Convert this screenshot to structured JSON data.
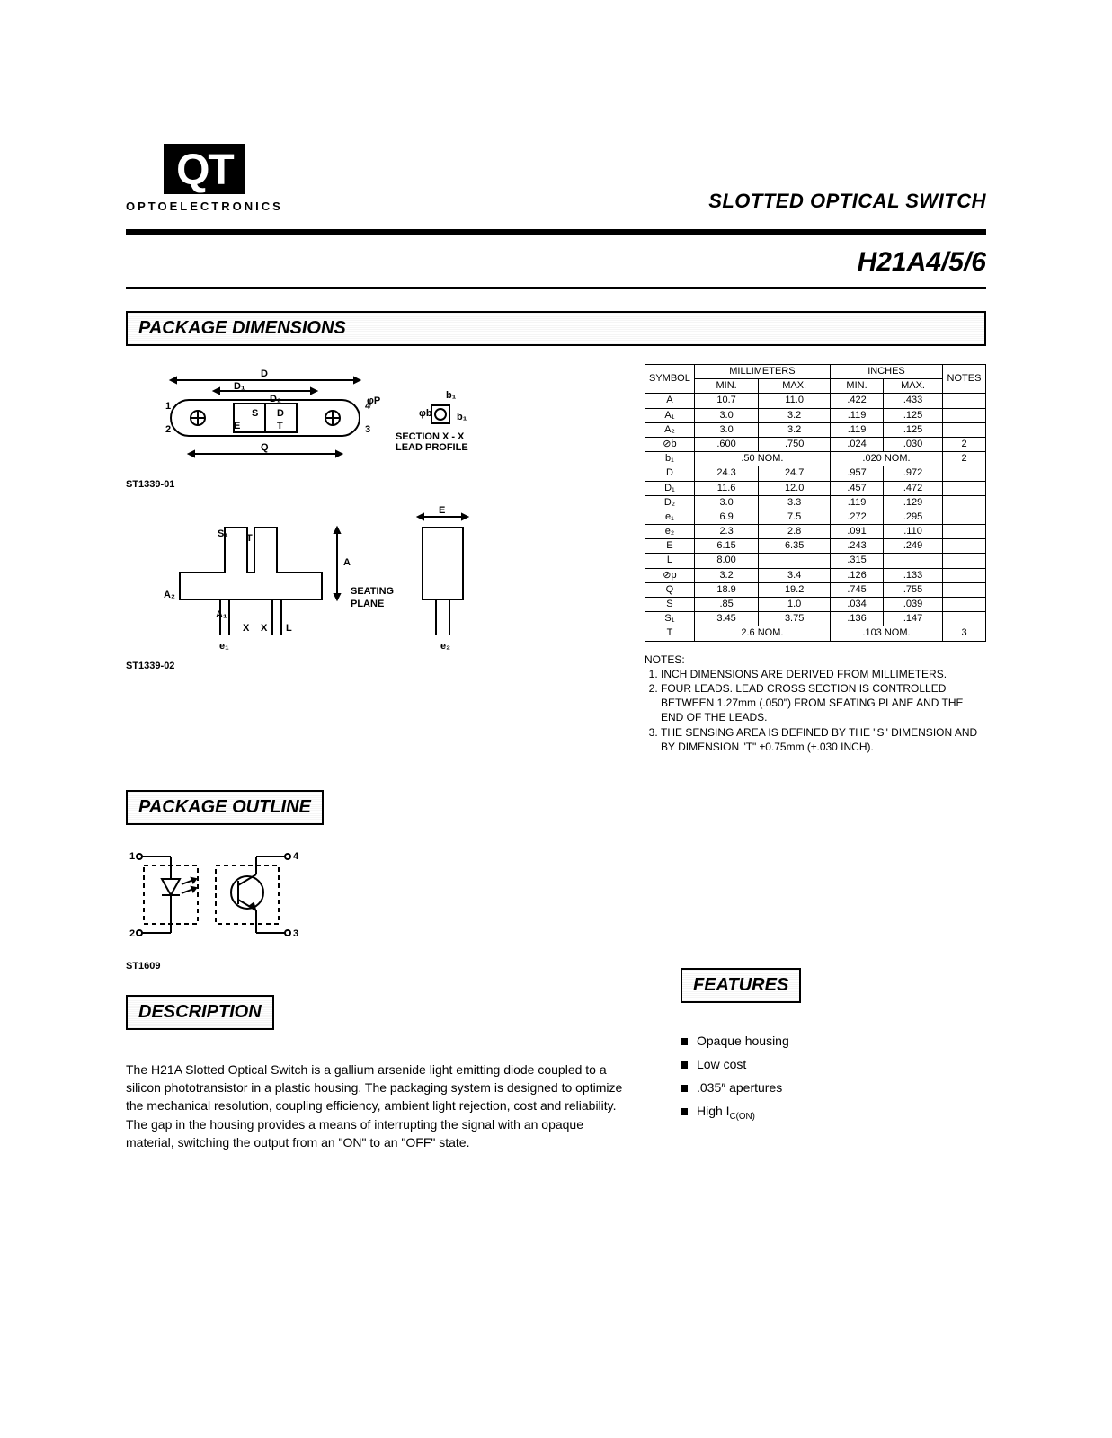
{
  "logo": {
    "text": "QT",
    "sub": "OPTOELECTRONICS"
  },
  "product_title": "SLOTTED OPTICAL SWITCH",
  "part_number": "H21A4/5/6",
  "sections": {
    "dimensions": "PACKAGE DIMENSIONS",
    "outline": "PACKAGE OUTLINE",
    "description": "DESCRIPTION",
    "features": "FEATURES"
  },
  "drawing_refs": {
    "top": "ST1339-01",
    "side": "ST1339-02",
    "outline": "ST1609"
  },
  "drawing_text": {
    "section_line1": "SECTION X - X",
    "section_line2": "LEAD PROFILE",
    "seating1": "SEATING",
    "seating2": "PLANE"
  },
  "dim_table": {
    "headers": {
      "symbol": "SYMBOL",
      "mm": "MILLIMETERS",
      "in": "INCHES",
      "notes": "NOTES",
      "min": "MIN.",
      "max": "MAX."
    },
    "rows": [
      {
        "sym": "A",
        "mm_min": "10.7",
        "mm_max": "11.0",
        "in_min": ".422",
        "in_max": ".433",
        "n": ""
      },
      {
        "sym": "A₁",
        "mm_min": "3.0",
        "mm_max": "3.2",
        "in_min": ".119",
        "in_max": ".125",
        "n": ""
      },
      {
        "sym": "A₂",
        "mm_min": "3.0",
        "mm_max": "3.2",
        "in_min": ".119",
        "in_max": ".125",
        "n": ""
      },
      {
        "sym": "⊘b",
        "mm_min": ".600",
        "mm_max": ".750",
        "in_min": ".024",
        "in_max": ".030",
        "n": "2"
      },
      {
        "sym": "b₁",
        "mm_span": ".50 NOM.",
        "in_span": ".020 NOM.",
        "n": "2"
      },
      {
        "sym": "D",
        "mm_min": "24.3",
        "mm_max": "24.7",
        "in_min": ".957",
        "in_max": ".972",
        "n": ""
      },
      {
        "sym": "D₁",
        "mm_min": "11.6",
        "mm_max": "12.0",
        "in_min": ".457",
        "in_max": ".472",
        "n": ""
      },
      {
        "sym": "D₂",
        "mm_min": "3.0",
        "mm_max": "3.3",
        "in_min": ".119",
        "in_max": ".129",
        "n": ""
      },
      {
        "sym": "e₁",
        "mm_min": "6.9",
        "mm_max": "7.5",
        "in_min": ".272",
        "in_max": ".295",
        "n": ""
      },
      {
        "sym": "e₂",
        "mm_min": "2.3",
        "mm_max": "2.8",
        "in_min": ".091",
        "in_max": ".110",
        "n": ""
      },
      {
        "sym": "E",
        "mm_min": "6.15",
        "mm_max": "6.35",
        "in_min": ".243",
        "in_max": ".249",
        "n": ""
      },
      {
        "sym": "L",
        "mm_min": "8.00",
        "mm_max": "",
        "in_min": ".315",
        "in_max": "",
        "n": ""
      },
      {
        "sym": "⊘p",
        "mm_min": "3.2",
        "mm_max": "3.4",
        "in_min": ".126",
        "in_max": ".133",
        "n": ""
      },
      {
        "sym": "Q",
        "mm_min": "18.9",
        "mm_max": "19.2",
        "in_min": ".745",
        "in_max": ".755",
        "n": ""
      },
      {
        "sym": "S",
        "mm_min": ".85",
        "mm_max": "1.0",
        "in_min": ".034",
        "in_max": ".039",
        "n": ""
      },
      {
        "sym": "S₁",
        "mm_min": "3.45",
        "mm_max": "3.75",
        "in_min": ".136",
        "in_max": ".147",
        "n": ""
      },
      {
        "sym": "T",
        "mm_span": "2.6 NOM.",
        "in_span": ".103 NOM.",
        "n": "3"
      }
    ]
  },
  "notes": {
    "heading": "NOTES:",
    "items": [
      "INCH DIMENSIONS ARE DERIVED FROM MILLIMETERS.",
      "FOUR LEADS. LEAD CROSS SECTION IS CONTROLLED BETWEEN 1.27mm (.050\") FROM SEATING PLANE AND THE END OF THE LEADS.",
      "THE SENSING AREA IS DEFINED BY THE \"S\" DIMENSION AND BY DIMENSION \"T\" ±0.75mm (±.030 INCH)."
    ]
  },
  "description_text": "The H21A Slotted Optical Switch is a gallium arsenide light emitting diode coupled to a silicon phototransistor in a plastic housing. The packaging system is designed to optimize the mechanical resolution, coupling efficiency, ambient light rejection, cost and reliability. The gap in the housing provides a means of interrupting the signal with an opaque material, switching the output from an \"ON\" to an \"OFF\" state.",
  "features": [
    "Opaque housing",
    "Low cost",
    ".035″ apertures",
    "High I_C(ON)"
  ],
  "colors": {
    "fg": "#000000",
    "bg": "#ffffff"
  }
}
